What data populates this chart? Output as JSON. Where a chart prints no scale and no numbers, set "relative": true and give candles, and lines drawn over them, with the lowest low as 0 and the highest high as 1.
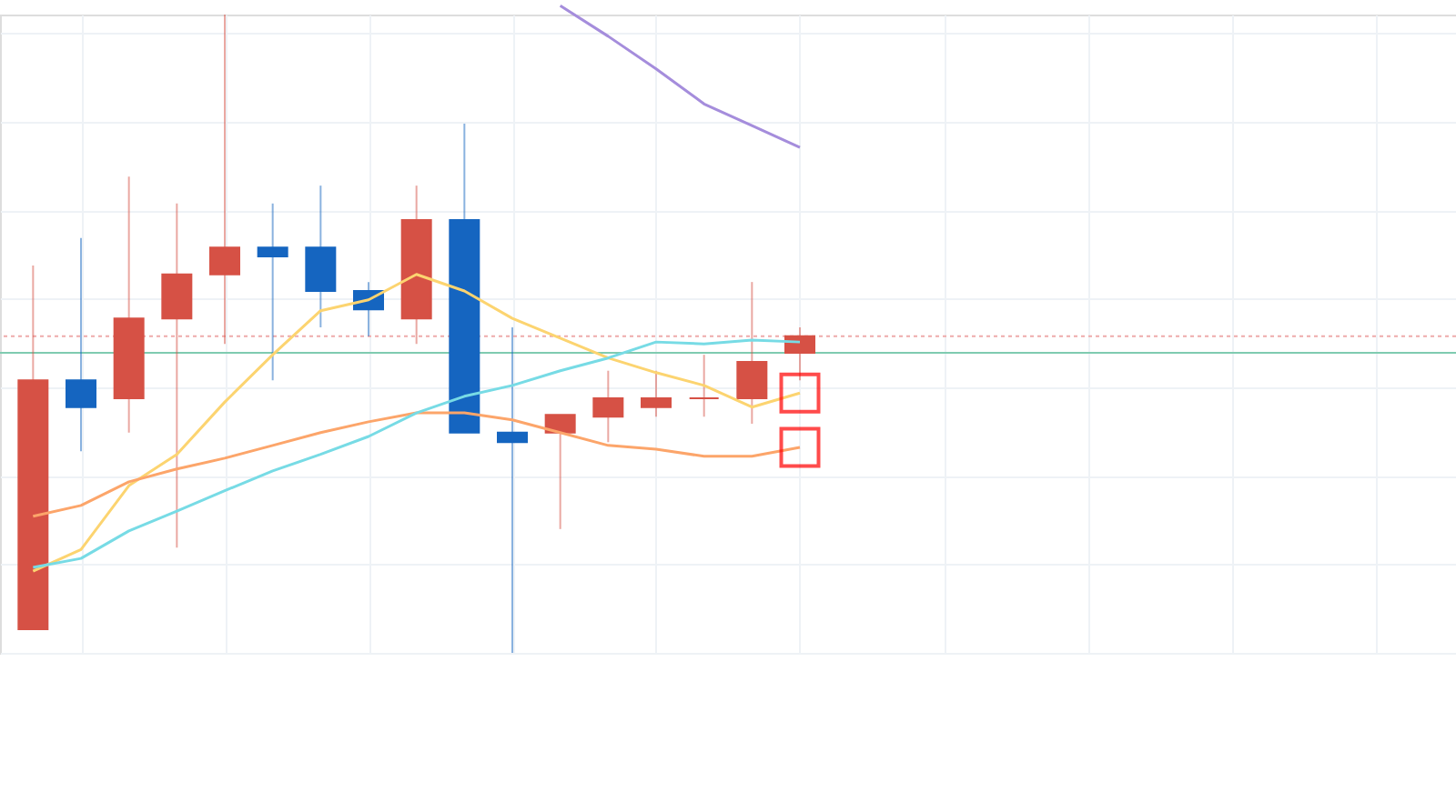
{
  "chart_data": {
    "type": "candlestick",
    "relative": true,
    "grid": true,
    "categories": [
      null,
      null,
      null,
      null,
      null,
      null,
      null,
      null,
      null,
      null,
      null,
      null,
      null,
      null,
      null,
      null,
      null,
      null,
      null,
      null,
      null,
      null,
      null,
      null,
      null,
      null,
      null,
      null,
      null,
      null
    ],
    "ohlc": [
      [
        0.037,
        0.607,
        0.037,
        0.427
      ],
      [
        0.427,
        0.65,
        0.316,
        0.385
      ],
      [
        0.399,
        0.746,
        0.345,
        0.524
      ],
      [
        0.524,
        0.704,
        0.165,
        0.593
      ],
      [
        0.593,
        1.0,
        0.484,
        0.635
      ],
      [
        0.635,
        0.704,
        0.427,
        0.621
      ],
      [
        0.635,
        0.732,
        0.51,
        0.567
      ],
      [
        0.567,
        0.581,
        0.496,
        0.538
      ],
      [
        0.524,
        0.732,
        0.484,
        0.678
      ],
      [
        0.678,
        0.829,
        0.345,
        0.345
      ],
      [
        0.345,
        0.51,
        0.0,
        0.33
      ],
      [
        0.345,
        0.373,
        0.194,
        0.373
      ],
      [
        0.37,
        0.442,
        0.33,
        0.399
      ],
      [
        0.385,
        0.442,
        0.37,
        0.399
      ],
      [
        0.399,
        0.467,
        0.37,
        0.399
      ],
      [
        0.399,
        0.581,
        0.359,
        0.456
      ],
      [
        0.47,
        0.51,
        0.427,
        0.496
      ],
      null,
      null,
      null,
      null,
      null,
      null,
      null,
      null,
      null,
      null,
      null,
      null,
      null
    ],
    "colors": [
      "#d65145",
      "#1565c0",
      "#d65145",
      "#d65145",
      "#d65145",
      "#1565c0",
      "#1565c0",
      "#1565c0",
      "#d65145",
      "#1565c0",
      "#1565c0",
      "#d65145",
      "#d65145",
      "#d65145",
      "#d65145",
      "#d65145",
      "#d65145",
      null,
      null,
      null,
      null,
      null,
      null,
      null,
      null,
      null,
      null,
      null,
      null,
      null
    ],
    "series": [
      {
        "type": "line",
        "color": "#fcd470",
        "values": [
          0.128,
          0.162,
          0.262,
          0.311,
          0.393,
          0.467,
          0.536,
          0.553,
          0.593,
          0.567,
          0.524,
          0.493,
          0.462,
          0.439,
          0.419,
          0.385,
          0.407,
          null,
          null,
          null,
          null,
          null,
          null,
          null,
          null,
          null,
          null,
          null,
          null,
          null
        ]
      },
      {
        "type": "line",
        "color": "#fca56a",
        "values": [
          0.214,
          0.231,
          0.268,
          0.288,
          0.305,
          0.325,
          0.345,
          0.362,
          0.376,
          0.376,
          0.365,
          0.345,
          0.325,
          0.319,
          0.308,
          0.308,
          0.322,
          null,
          null,
          null,
          null,
          null,
          null,
          null,
          null,
          null,
          null,
          null,
          null,
          null
        ]
      },
      {
        "type": "line",
        "color": "#77dbe5",
        "values": [
          0.134,
          0.148,
          0.191,
          0.222,
          0.254,
          0.285,
          0.311,
          0.339,
          0.376,
          0.402,
          0.419,
          0.442,
          0.462,
          0.487,
          0.484,
          0.49,
          0.487,
          null,
          null,
          null,
          null,
          null,
          null,
          null,
          null,
          null,
          null,
          null,
          null,
          null
        ]
      },
      {
        "type": "line",
        "color": "#a58ddc",
        "values": [
          null,
          null,
          null,
          null,
          null,
          null,
          null,
          null,
          null,
          null,
          null,
          1.014,
          0.966,
          0.915,
          0.86,
          0.826,
          0.792,
          null,
          null,
          null,
          null,
          null,
          null,
          null,
          null,
          null,
          null,
          null,
          null,
          null
        ]
      },
      {
        "type": "scatter",
        "marker": "square",
        "color": "#ff0000",
        "values": [
          null,
          null,
          null,
          null,
          null,
          null,
          null,
          null,
          null,
          null,
          null,
          null,
          null,
          null,
          null,
          null,
          0.407,
          null,
          null,
          null,
          null,
          null,
          null,
          null,
          null,
          null,
          null,
          null,
          null,
          null
        ]
      },
      {
        "type": "scatter",
        "marker": "square",
        "color": "#ff0000",
        "values": [
          null,
          null,
          null,
          null,
          null,
          null,
          null,
          null,
          null,
          null,
          null,
          null,
          null,
          null,
          null,
          null,
          0.322,
          null,
          null,
          null,
          null,
          null,
          null,
          null,
          null,
          null,
          null,
          null,
          null,
          null
        ]
      }
    ],
    "ref_lines": [
      {
        "axis": "y",
        "value": 0.47,
        "color": "#7fcbb0",
        "line_style": "solid"
      },
      {
        "axis": "y",
        "value": 0.496,
        "color": "#eeaaaa",
        "line_style": "dotted"
      }
    ]
  }
}
